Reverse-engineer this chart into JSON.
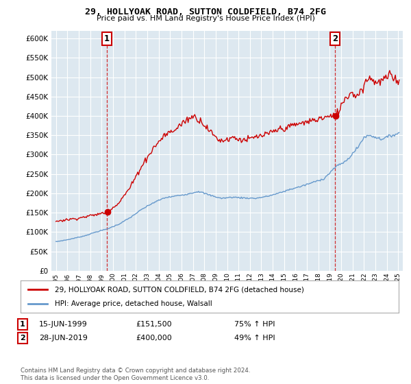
{
  "title": "29, HOLLYOAK ROAD, SUTTON COLDFIELD, B74 2FG",
  "subtitle": "Price paid vs. HM Land Registry's House Price Index (HPI)",
  "legend_line1": "29, HOLLYOAK ROAD, SUTTON COLDFIELD, B74 2FG (detached house)",
  "legend_line2": "HPI: Average price, detached house, Walsall",
  "annotation1": {
    "label": "1",
    "date": "15-JUN-1999",
    "price": "£151,500",
    "note": "75% ↑ HPI"
  },
  "annotation2": {
    "label": "2",
    "date": "28-JUN-2019",
    "price": "£400,000",
    "note": "49% ↑ HPI"
  },
  "footer": "Contains HM Land Registry data © Crown copyright and database right 2024.\nThis data is licensed under the Open Government Licence v3.0.",
  "red_color": "#cc0000",
  "blue_color": "#6699cc",
  "plot_bg_color": "#dde8f0",
  "grid_color": "#ffffff",
  "background_color": "#ffffff",
  "ylim": [
    0,
    620000
  ],
  "yticks": [
    0,
    50000,
    100000,
    150000,
    200000,
    250000,
    300000,
    350000,
    400000,
    450000,
    500000,
    550000,
    600000
  ],
  "sale1_year": 1999.46,
  "sale2_year": 2019.46,
  "sale1_price": 151500,
  "sale2_price": 400000
}
